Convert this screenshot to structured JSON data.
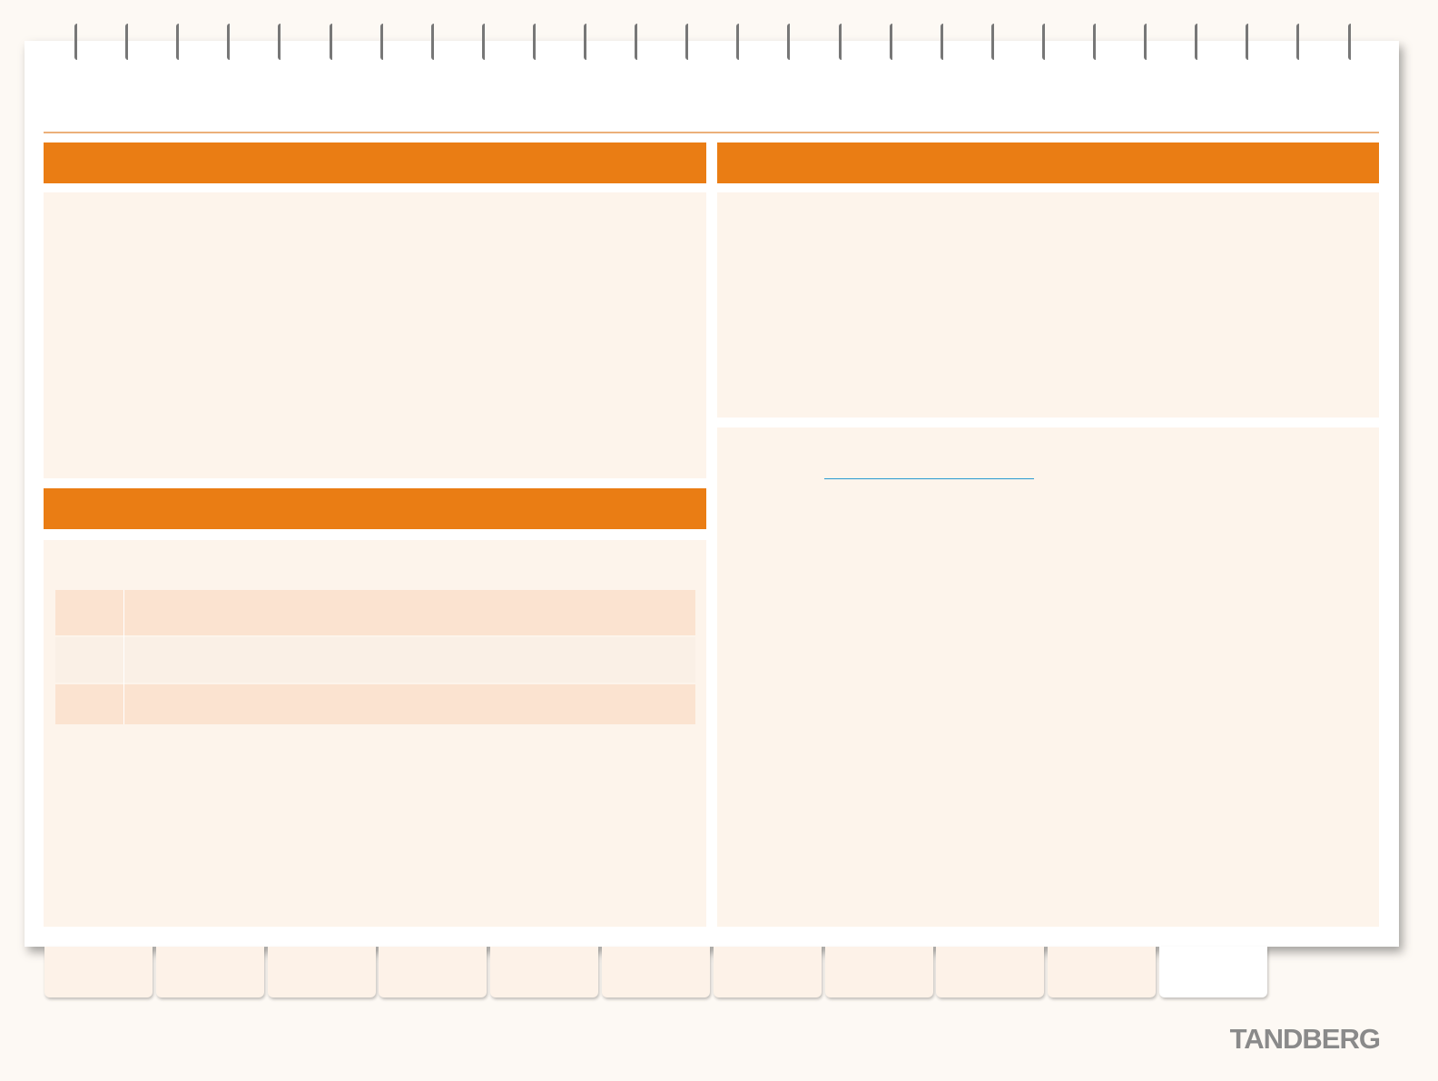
{
  "logo": "TANDBERG"
}
